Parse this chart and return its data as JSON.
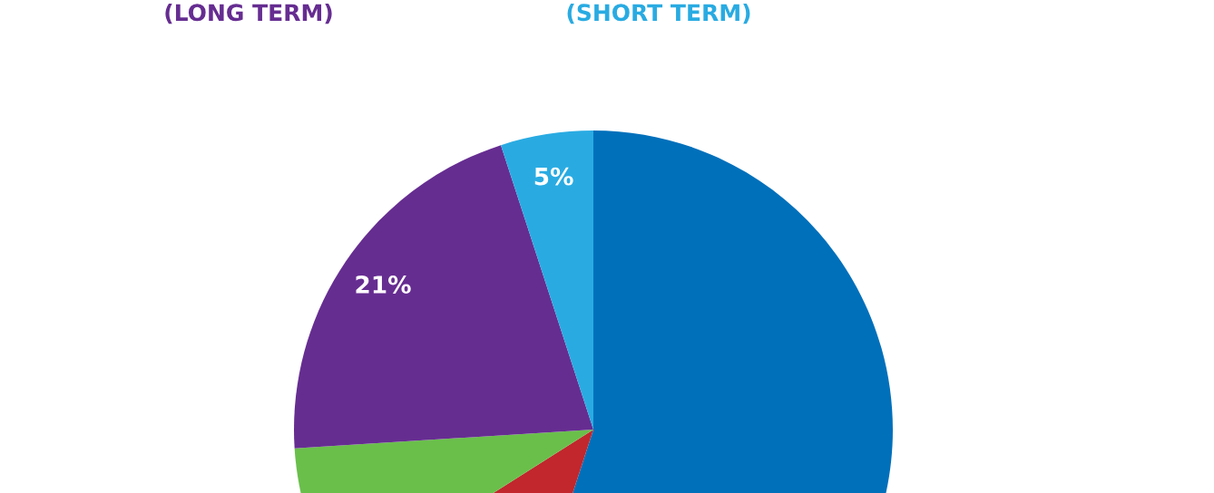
{
  "chart_data": {
    "type": "pie",
    "categories": [
      null,
      null,
      null,
      null,
      null
    ],
    "values": [
      55,
      11,
      8,
      21,
      5
    ],
    "colors": [
      "#0070bb",
      "#c1272d",
      "#6abf4b",
      "#662d91",
      "#29abe2"
    ],
    "value_labels": [
      null,
      null,
      null,
      "21%",
      "5%"
    ],
    "annotations": [
      "(LONG TERM)",
      "(SHORT TERM)"
    ]
  }
}
